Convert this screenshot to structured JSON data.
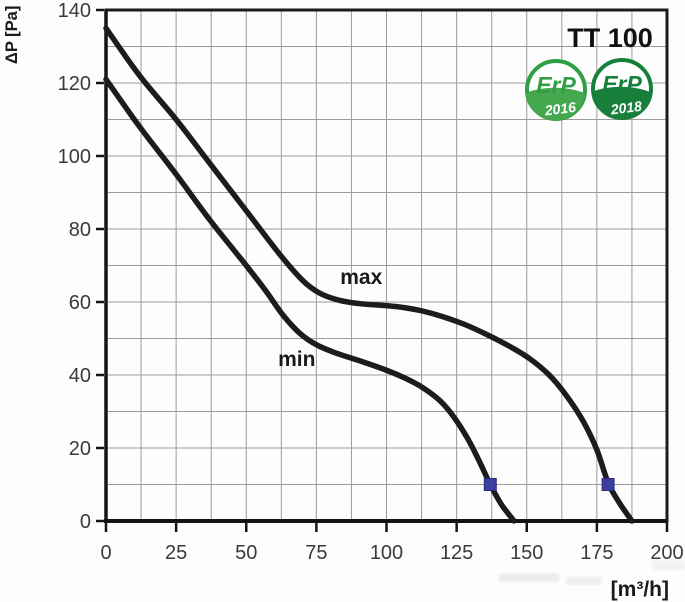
{
  "chart_data": {
    "type": "line",
    "title": "TT 100",
    "xlabel": "[m³/h]",
    "ylabel": "ΔP [Pa]",
    "xlim": [
      0,
      200
    ],
    "ylim": [
      0,
      140
    ],
    "x_ticks": [
      0,
      25,
      50,
      75,
      100,
      125,
      150,
      175,
      200
    ],
    "y_ticks": [
      0,
      20,
      40,
      60,
      80,
      100,
      120,
      140
    ],
    "x_minor_step": 12.5,
    "y_minor_step": 10,
    "grid": "on",
    "legend_position": "none",
    "curve_color": "#1c1c1c",
    "grid_color": "#9c9c9c",
    "marker_color": "#3b3f9d",
    "marker_edge_color": "#2c2f7e",
    "tick_label_color": "#3a3a3a",
    "series": [
      {
        "name": "max",
        "label": "max",
        "label_pos": {
          "x": 91,
          "y": 65
        },
        "marker_point": {
          "x": 179,
          "y": 10
        },
        "points": [
          [
            0,
            135
          ],
          [
            12,
            122
          ],
          [
            25,
            110
          ],
          [
            37,
            98
          ],
          [
            50,
            85
          ],
          [
            62,
            73
          ],
          [
            70,
            66
          ],
          [
            76,
            62.5
          ],
          [
            83,
            60.5
          ],
          [
            91,
            59.5
          ],
          [
            100,
            59
          ],
          [
            106,
            58.5
          ],
          [
            113,
            57.5
          ],
          [
            120,
            56
          ],
          [
            128,
            53.8
          ],
          [
            136,
            51
          ],
          [
            144,
            47.8
          ],
          [
            151,
            44.5
          ],
          [
            158,
            40
          ],
          [
            164,
            34.5
          ],
          [
            170,
            27.5
          ],
          [
            175,
            19.5
          ],
          [
            179,
            10.5
          ],
          [
            183,
            5
          ],
          [
            187.5,
            0
          ]
        ]
      },
      {
        "name": "min",
        "label": "min",
        "label_pos": {
          "x": 68,
          "y": 42.5
        },
        "marker_point": {
          "x": 137,
          "y": 10
        },
        "points": [
          [
            0,
            121
          ],
          [
            12,
            108
          ],
          [
            25,
            95
          ],
          [
            37,
            82.5
          ],
          [
            50,
            70
          ],
          [
            57,
            63
          ],
          [
            63,
            56.5
          ],
          [
            69,
            51.5
          ],
          [
            75,
            48.3
          ],
          [
            82,
            46
          ],
          [
            90,
            44
          ],
          [
            100,
            41.3
          ],
          [
            107,
            39
          ],
          [
            113,
            36.5
          ],
          [
            119,
            33
          ],
          [
            124,
            28.5
          ],
          [
            129,
            22.5
          ],
          [
            133,
            16.5
          ],
          [
            137,
            10
          ],
          [
            141,
            4.5
          ],
          [
            145.5,
            0
          ]
        ]
      }
    ]
  },
  "badges": [
    {
      "name": "ErP 2016",
      "text": "ErP",
      "year": "2016",
      "ring": "#2f9e45",
      "leaf": "#46a84e",
      "text_color": "#2f9e45",
      "year_color": "#ffffff"
    },
    {
      "name": "ErP 2018",
      "text": "ErP",
      "year": "2018",
      "ring": "#15803a",
      "leaf": "#177e3b",
      "text_color": "#15803a",
      "year_color": "#ffffff"
    }
  ]
}
